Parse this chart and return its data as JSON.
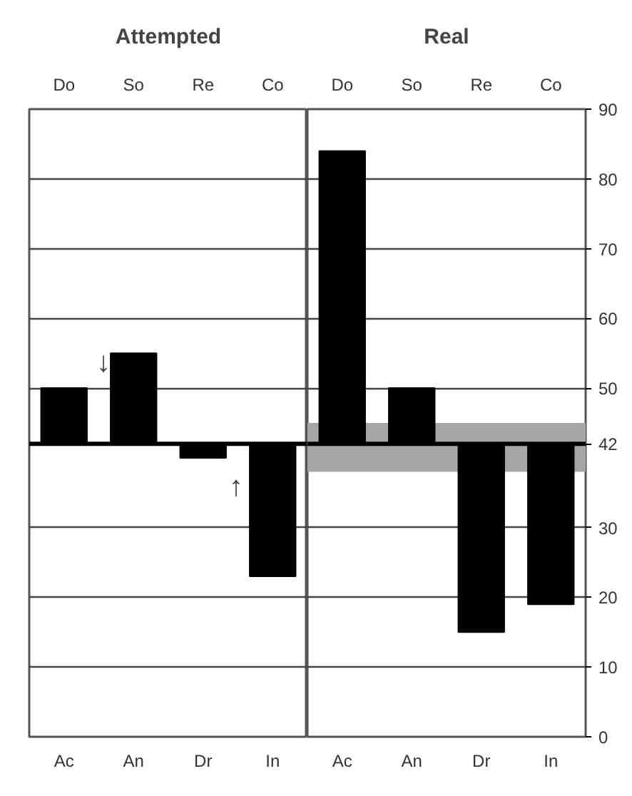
{
  "chart_data": [
    {
      "type": "bar",
      "title": "Attempted",
      "categories": [
        "Ac",
        "An",
        "Dr",
        "In"
      ],
      "base": [
        42,
        42,
        42,
        42
      ],
      "values": [
        8,
        13,
        -2,
        -19
      ],
      "color": "#000000",
      "ylim": [
        0,
        90
      ],
      "yticks": [
        0,
        10,
        20,
        30,
        42,
        50,
        60,
        70,
        80,
        90
      ],
      "grid": "y",
      "tick_labels": "x",
      "ref_lines": [
        {
          "axis": "y",
          "value": 42,
          "label": null,
          "color": "#000000"
        }
      ],
      "annotations": [
        "Do",
        "So",
        "Re",
        "Co",
        "↓",
        "↑"
      ]
    },
    {
      "type": "bar",
      "title": "Real",
      "categories": [
        "Ac",
        "An",
        "Dr",
        "In"
      ],
      "base": [
        42,
        42,
        42,
        42
      ],
      "values": [
        42,
        8,
        -27,
        -23
      ],
      "color": "#000000",
      "ylim": [
        0,
        90
      ],
      "yticks": [
        0,
        10,
        20,
        30,
        42,
        50,
        60,
        70,
        80,
        90
      ],
      "grid": "y",
      "ref_lines": [
        {
          "axis": "y",
          "value": 42,
          "label": null,
          "color": "#000000"
        }
      ],
      "bands": [
        {
          "axis": "y",
          "from": 38,
          "to": 45,
          "label": null,
          "color": "#a6a6a6"
        }
      ],
      "annotations": [
        "Do",
        "So",
        "Re",
        "Co"
      ]
    }
  ]
}
